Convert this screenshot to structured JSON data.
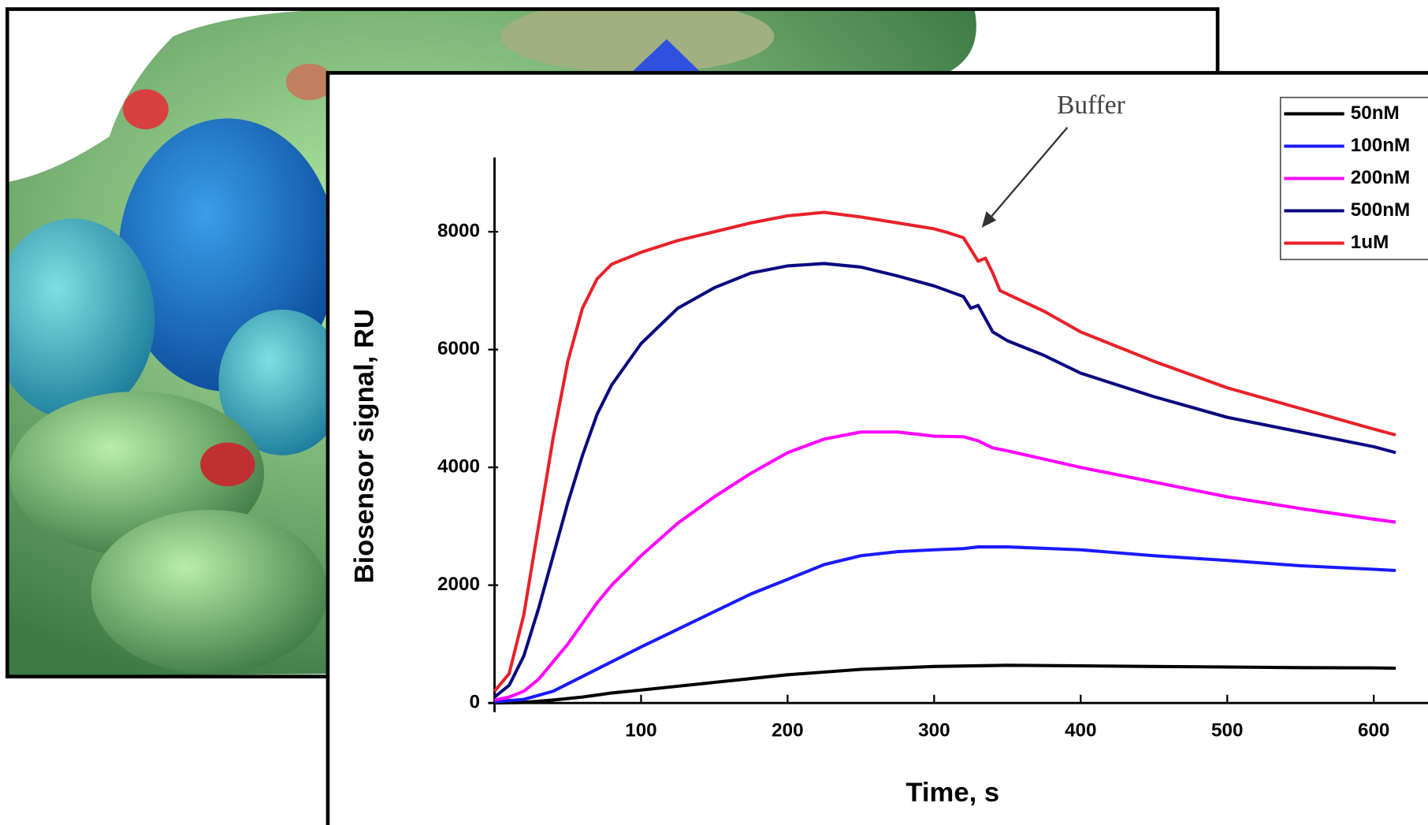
{
  "chart_data": {
    "type": "line",
    "xlabel": "Time,  s",
    "ylabel": "Biosensor  signal, RU",
    "annotation": "Buffer",
    "xlim": [
      0,
      637
    ],
    "ylim": [
      0,
      9260
    ],
    "xticks": [
      100,
      200,
      300,
      400,
      500,
      600
    ],
    "yticks": [
      0,
      2000,
      4000,
      6000,
      8000
    ],
    "legend": "upper right",
    "series": [
      {
        "name": "50nM",
        "color": "#000000",
        "x": [
          0,
          20,
          40,
          60,
          80,
          100,
          150,
          200,
          250,
          300,
          350,
          400,
          450,
          500,
          550,
          600,
          615
        ],
        "values": [
          0,
          10,
          50,
          100,
          170,
          220,
          350,
          480,
          570,
          620,
          640,
          630,
          620,
          610,
          600,
          595,
          590
        ]
      },
      {
        "name": "100nM",
        "color": "#1a1aff",
        "x": [
          0,
          20,
          40,
          60,
          80,
          100,
          125,
          150,
          175,
          200,
          225,
          250,
          275,
          300,
          320,
          330,
          350,
          400,
          450,
          500,
          550,
          600,
          615
        ],
        "values": [
          20,
          60,
          200,
          450,
          700,
          950,
          1250,
          1550,
          1850,
          2100,
          2350,
          2500,
          2570,
          2600,
          2620,
          2650,
          2650,
          2600,
          2500,
          2420,
          2330,
          2270,
          2250
        ]
      },
      {
        "name": "200nM",
        "color": "#ff00ff",
        "x": [
          0,
          10,
          20,
          30,
          40,
          50,
          60,
          70,
          80,
          100,
          125,
          150,
          175,
          200,
          225,
          250,
          275,
          300,
          320,
          330,
          340,
          350,
          400,
          450,
          500,
          550,
          600,
          615
        ],
        "values": [
          50,
          100,
          200,
          400,
          700,
          1000,
          1350,
          1700,
          2000,
          2500,
          3050,
          3500,
          3900,
          4250,
          4480,
          4600,
          4600,
          4530,
          4520,
          4450,
          4330,
          4280,
          4000,
          3750,
          3500,
          3300,
          3120,
          3070
        ]
      },
      {
        "name": "500nM",
        "color": "#0a0a80",
        "x": [
          0,
          10,
          20,
          30,
          40,
          50,
          60,
          70,
          80,
          100,
          125,
          150,
          175,
          200,
          225,
          250,
          275,
          300,
          320,
          325,
          330,
          340,
          350,
          375,
          400,
          450,
          500,
          550,
          600,
          615
        ],
        "values": [
          100,
          300,
          800,
          1600,
          2500,
          3400,
          4200,
          4900,
          5400,
          6100,
          6700,
          7050,
          7300,
          7420,
          7460,
          7400,
          7250,
          7080,
          6900,
          6700,
          6750,
          6300,
          6150,
          5900,
          5600,
          5200,
          4850,
          4600,
          4350,
          4250
        ]
      },
      {
        "name": "1uM",
        "color": "#e8222a",
        "x": [
          0,
          10,
          20,
          30,
          40,
          50,
          60,
          70,
          80,
          100,
          125,
          150,
          175,
          200,
          225,
          250,
          275,
          300,
          310,
          320,
          325,
          330,
          335,
          340,
          345,
          375,
          400,
          450,
          500,
          550,
          600,
          615
        ],
        "values": [
          200,
          500,
          1500,
          3000,
          4500,
          5800,
          6700,
          7200,
          7450,
          7650,
          7850,
          8000,
          8150,
          8270,
          8330,
          8250,
          8150,
          8050,
          7980,
          7900,
          7700,
          7500,
          7550,
          7300,
          7000,
          6650,
          6300,
          5800,
          5350,
          5000,
          4650,
          4550
        ]
      }
    ]
  }
}
